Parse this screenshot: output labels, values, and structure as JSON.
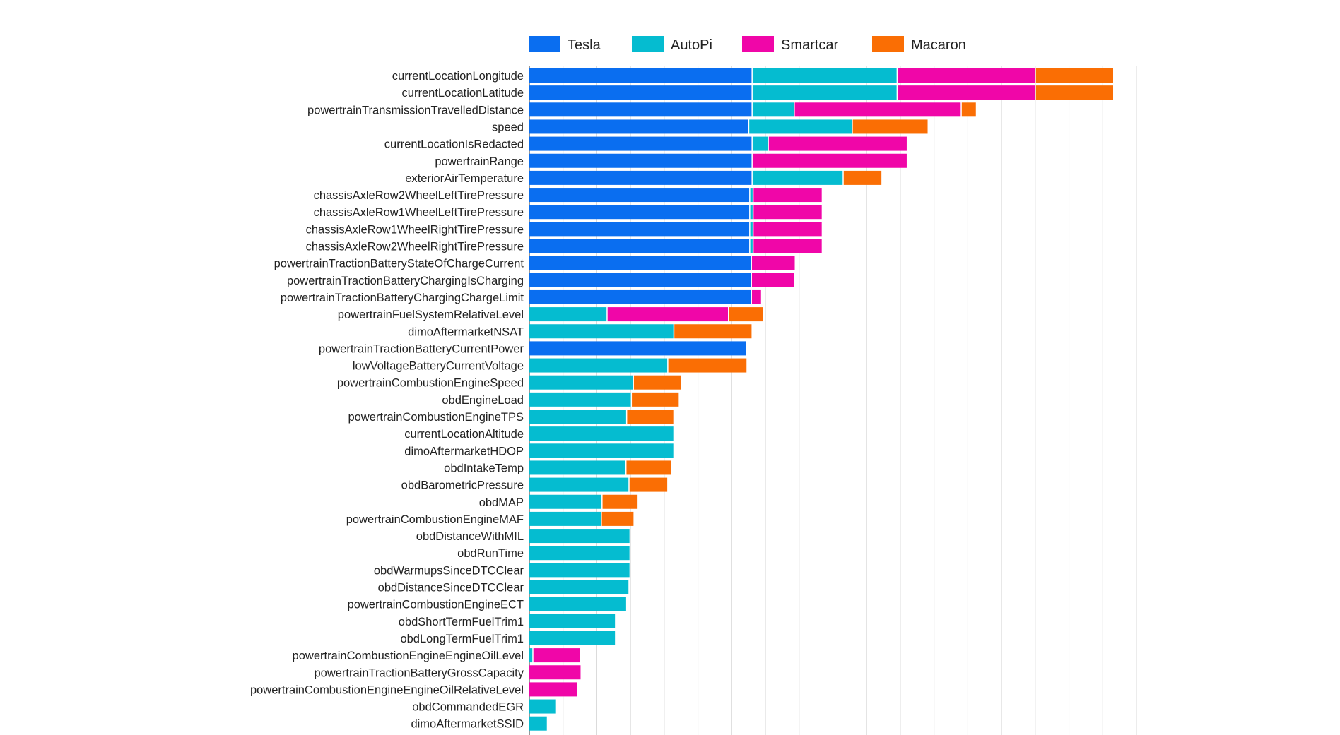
{
  "chart_data": {
    "type": "bar",
    "orientation": "horizontal",
    "stacked": true,
    "title": "",
    "xlabel": "",
    "ylabel": "",
    "grid": true,
    "xlim": [
      0,
      18
    ],
    "legend_position": "top",
    "categories": [
      "currentLocationLongitude",
      "currentLocationLatitude",
      "powertrainTransmissionTravelledDistance",
      "speed",
      "currentLocationIsRedacted",
      "powertrainRange",
      "exteriorAirTemperature",
      "chassisAxleRow2WheelLeftTirePressure",
      "chassisAxleRow1WheelLeftTirePressure",
      "chassisAxleRow1WheelRightTirePressure",
      "chassisAxleRow2WheelRightTirePressure",
      "powertrainTractionBatteryStateOfChargeCurrent",
      "powertrainTractionBatteryChargingIsCharging",
      "powertrainTractionBatteryChargingChargeLimit",
      "powertrainFuelSystemRelativeLevel",
      "dimoAftermarketNSAT",
      "powertrainTractionBatteryCurrentPower",
      "lowVoltageBatteryCurrentVoltage",
      "powertrainCombustionEngineSpeed",
      "obdEngineLoad",
      "powertrainCombustionEngineTPS",
      "currentLocationAltitude",
      "dimoAftermarketHDOP",
      "obdIntakeTemp",
      "obdBarometricPressure",
      "obdMAP",
      "powertrainCombustionEngineMAF",
      "obdDistanceWithMIL",
      "obdRunTime",
      "obdWarmupsSinceDTCClear",
      "obdDistanceSinceDTCClear",
      "powertrainCombustionEngineECT",
      "obdShortTermFuelTrim1",
      "obdLongTermFuelTrim1",
      "powertrainCombustionEngineEngineOilLevel",
      "powertrainTractionBatteryGrossCapacity",
      "powertrainCombustionEngineEngineOilRelativeLevel",
      "obdCommandedEGR",
      "dimoAftermarketSSID"
    ],
    "series": [
      {
        "name": "Tesla",
        "color": "#0a6ef0",
        "values": [
          6.62,
          6.62,
          6.62,
          6.52,
          6.62,
          6.62,
          6.62,
          6.55,
          6.55,
          6.55,
          6.55,
          6.6,
          6.6,
          6.6,
          0,
          0,
          6.45,
          0,
          0,
          0,
          0,
          0,
          0,
          0,
          0,
          0,
          0,
          0,
          0,
          0,
          0,
          0,
          0,
          0,
          0,
          0,
          0,
          0,
          0
        ]
      },
      {
        "name": "AutoPi",
        "color": "#05bcd0",
        "values": [
          4.3,
          4.3,
          1.25,
          3.07,
          0.48,
          0,
          2.7,
          0.1,
          0.1,
          0.1,
          0.1,
          0,
          0,
          0,
          2.32,
          4.3,
          0,
          4.12,
          3.1,
          3.04,
          2.9,
          4.3,
          4.3,
          2.88,
          2.97,
          2.17,
          2.15,
          3.0,
          3.0,
          3.0,
          2.97,
          2.9,
          2.57,
          2.57,
          0.12,
          0,
          0,
          0.8,
          0.55
        ]
      },
      {
        "name": "Smartcar",
        "color": "#f006a8",
        "values": [
          4.1,
          4.1,
          4.95,
          0,
          4.12,
          4.6,
          0,
          2.05,
          2.05,
          2.05,
          2.05,
          1.3,
          1.27,
          0.3,
          3.6,
          0,
          0,
          0,
          0,
          0,
          0,
          0,
          0,
          0,
          0,
          0,
          0,
          0,
          0,
          0,
          0,
          0,
          0,
          0,
          1.42,
          1.55,
          1.45,
          0,
          0
        ]
      },
      {
        "name": "Macaron",
        "color": "#fa6e04",
        "values": [
          2.32,
          2.32,
          0.45,
          2.25,
          0,
          0,
          1.15,
          0,
          0,
          0,
          0,
          0,
          0,
          0,
          1.03,
          2.32,
          0,
          2.35,
          1.42,
          1.42,
          1.4,
          0,
          0,
          1.35,
          1.15,
          1.07,
          0.97,
          0,
          0,
          0,
          0,
          0,
          0,
          0,
          0,
          0,
          0,
          0,
          0
        ]
      }
    ]
  }
}
